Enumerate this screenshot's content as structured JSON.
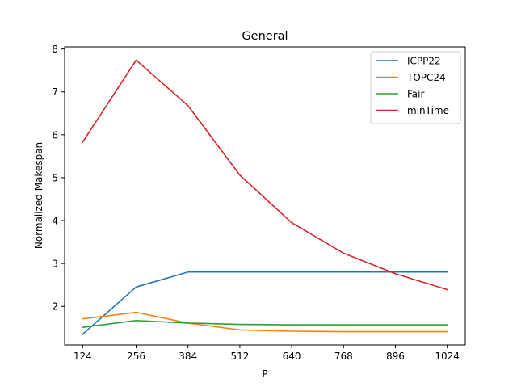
{
  "chart_data": {
    "type": "line",
    "title": "General",
    "xlabel": "P",
    "ylabel": "Normalized Makespan",
    "x": [
      124,
      256,
      384,
      512,
      640,
      768,
      896,
      1024
    ],
    "xticks": [
      "124",
      "256",
      "384",
      "512",
      "640",
      "768",
      "896",
      "1024"
    ],
    "yticks": [
      "2",
      "3",
      "4",
      "5",
      "6",
      "7",
      "8"
    ],
    "ytick_values": [
      2,
      3,
      4,
      5,
      6,
      7,
      8
    ],
    "ylim": [
      1.1,
      8.05
    ],
    "grid": false,
    "legend_position": "top-right",
    "series": [
      {
        "name": "ICPP22",
        "color": "#1f77b4",
        "values": [
          1.35,
          2.45,
          2.8,
          2.8,
          2.8,
          2.8,
          2.8,
          2.8
        ]
      },
      {
        "name": "TOPC24",
        "color": "#ff7f0e",
        "values": [
          1.71,
          1.86,
          1.61,
          1.45,
          1.42,
          1.41,
          1.41,
          1.41
        ]
      },
      {
        "name": "Fair",
        "color": "#2ca02c",
        "values": [
          1.51,
          1.67,
          1.61,
          1.58,
          1.57,
          1.57,
          1.57,
          1.57
        ]
      },
      {
        "name": "minTime",
        "color": "#d62728",
        "values": [
          5.83,
          7.74,
          6.68,
          5.06,
          3.95,
          3.24,
          2.76,
          2.39
        ]
      }
    ]
  }
}
